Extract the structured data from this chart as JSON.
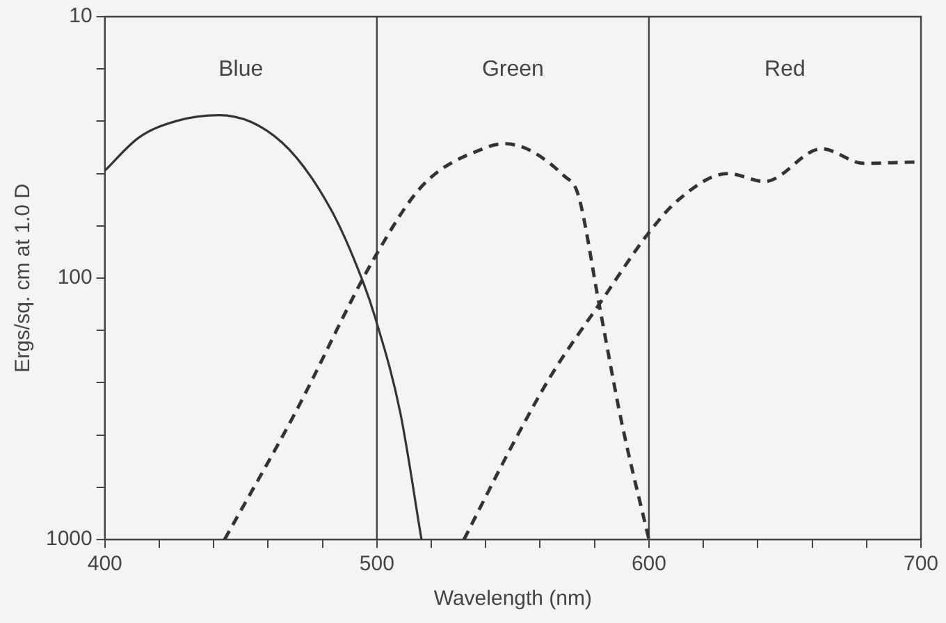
{
  "chart_data": {
    "type": "line",
    "xlabel": "Wavelength (nm)",
    "ylabel": "Ergs/sq. cm at 1.0 D",
    "log": "y",
    "grid": false,
    "legend": false,
    "xlim": [
      400,
      700
    ],
    "xticks": [
      400,
      {
        "value": 420,
        "label": null
      },
      {
        "value": 440,
        "label": null
      },
      {
        "value": 460,
        "label": null
      },
      {
        "value": 480,
        "label": null
      },
      500,
      {
        "value": 520,
        "label": null
      },
      {
        "value": 540,
        "label": null
      },
      {
        "value": 560,
        "label": null
      },
      {
        "value": 580,
        "label": null
      },
      600,
      {
        "value": 620,
        "label": null
      },
      {
        "value": 640,
        "label": null
      },
      {
        "value": 660,
        "label": null
      },
      {
        "value": 680,
        "label": null
      },
      700
    ],
    "ylim": [
      1000,
      10
    ],
    "yticks": [
      10,
      {
        "value": 15.85,
        "label": null
      },
      {
        "value": 25.12,
        "label": null
      },
      {
        "value": 39.81,
        "label": null
      },
      {
        "value": 63.1,
        "label": null
      },
      100,
      {
        "value": 158.5,
        "label": null
      },
      {
        "value": 251.2,
        "label": null
      },
      {
        "value": 398.1,
        "label": null
      },
      {
        "value": 631,
        "label": null
      },
      1000
    ],
    "ref_lines": [
      {
        "axis": "x",
        "value": 500
      },
      {
        "axis": "x",
        "value": 600
      }
    ],
    "annotations": [
      "Blue",
      "Green",
      "Red"
    ],
    "series": [
      {
        "color": "#333333",
        "line_style": "solid",
        "x": [
          400,
          412.5,
          426.7,
          442,
          465,
          483,
          495,
          499.5,
          508.6,
          516.4
        ],
        "values": [
          38.8,
          29,
          25,
          23.8,
          30.2,
          54.4,
          104,
          143,
          327,
          1000
        ]
      },
      {
        "color": "#333333",
        "line_style": "dashed",
        "x": [
          444,
          470,
          499,
          517,
          540,
          547,
          569,
          574,
          581.7,
          590,
          600
        ],
        "values": [
          1000,
          327,
          84,
          44,
          31.7,
          30.6,
          40.8,
          48,
          126,
          357,
          1000
        ]
      },
      {
        "color": "#333333",
        "line_style": "dashed",
        "x": [
          532,
          550,
          564,
          581.7,
          600,
          611,
          629,
          642.6,
          663.5,
          679,
          699,
          700
        ],
        "values": [
          1000,
          431,
          236,
          126,
          67,
          50,
          39.8,
          42.7,
          32,
          36.4,
          36,
          36
        ]
      }
    ]
  }
}
